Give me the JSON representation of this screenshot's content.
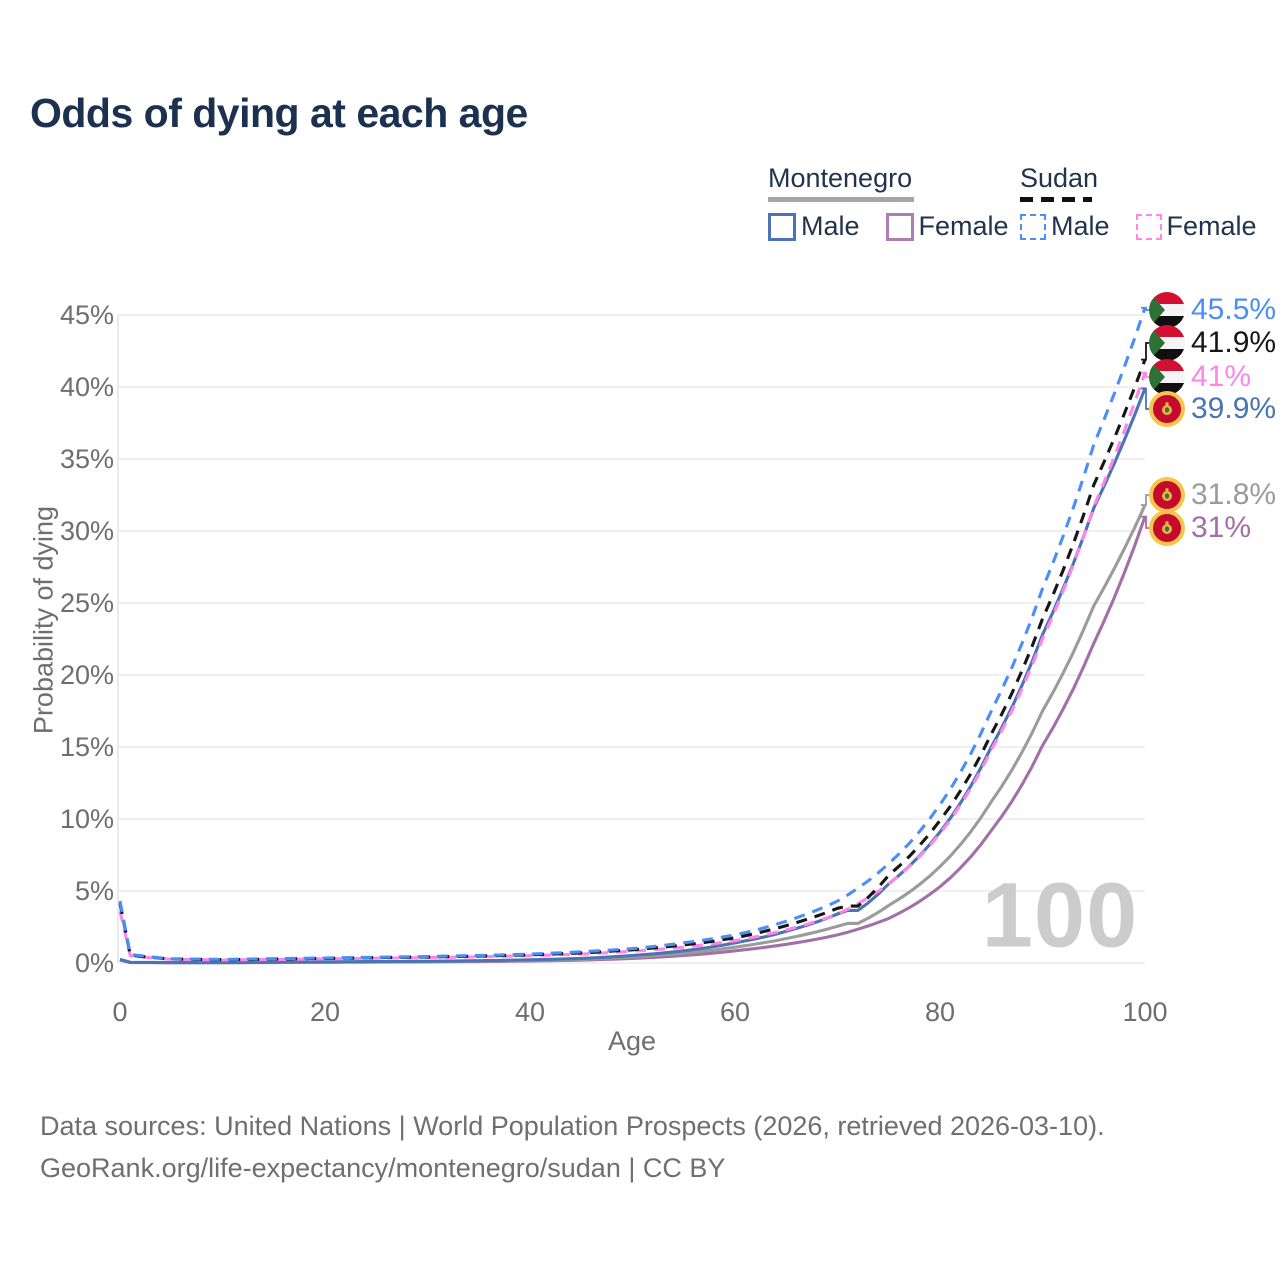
{
  "title": "Odds of dying at each age",
  "watermark": "100",
  "legend": {
    "groups": [
      {
        "key": "montenegro",
        "name": "Montenegro",
        "line_style": "solid",
        "underline_color": "#a6a6a6",
        "items": [
          {
            "key": "male",
            "label": "Male",
            "color": "#4a74b4",
            "dashed": false
          },
          {
            "key": "female",
            "label": "Female",
            "color": "#b07cb5",
            "dashed": false
          }
        ]
      },
      {
        "key": "sudan",
        "name": "Sudan",
        "line_style": "dashed",
        "underline_color": "#111111",
        "items": [
          {
            "key": "male",
            "label": "Male",
            "color": "#4c8df6",
            "dashed": true
          },
          {
            "key": "female",
            "label": "Female",
            "color": "#ff85e6",
            "dashed": true
          }
        ]
      }
    ]
  },
  "axes": {
    "y_label": "Probability of dying",
    "x_label": "Age",
    "y_ticks": [
      {
        "label": "0%",
        "value": 0
      },
      {
        "label": "5%",
        "value": 5
      },
      {
        "label": "10%",
        "value": 10
      },
      {
        "label": "15%",
        "value": 15
      },
      {
        "label": "20%",
        "value": 20
      },
      {
        "label": "25%",
        "value": 25
      },
      {
        "label": "30%",
        "value": 30
      },
      {
        "label": "35%",
        "value": 35
      },
      {
        "label": "40%",
        "value": 40
      },
      {
        "label": "45%",
        "value": 45
      }
    ],
    "x_ticks": [
      {
        "label": "0",
        "value": 0
      },
      {
        "label": "20",
        "value": 20
      },
      {
        "label": "40",
        "value": 40
      },
      {
        "label": "60",
        "value": 60
      },
      {
        "label": "80",
        "value": 80
      },
      {
        "label": "100",
        "value": 100
      }
    ]
  },
  "chart_data": {
    "type": "line",
    "title": "Odds of dying at each age",
    "xlabel": "Age",
    "ylabel": "Probability of dying",
    "xlim": [
      0,
      100
    ],
    "ylim": [
      0,
      45
    ],
    "y_unit": "percent",
    "grid": "horizontal",
    "legend_position": "top-right",
    "series": [
      {
        "name": "Sudan Male",
        "country": "sudan",
        "color": "#4c8df6",
        "dashed": true,
        "end_label": "45.5%",
        "points": [
          [
            0,
            4.3
          ],
          [
            1,
            0.6
          ],
          [
            5,
            0.3
          ],
          [
            10,
            0.25
          ],
          [
            15,
            0.3
          ],
          [
            20,
            0.35
          ],
          [
            25,
            0.4
          ],
          [
            30,
            0.45
          ],
          [
            35,
            0.52
          ],
          [
            40,
            0.62
          ],
          [
            45,
            0.78
          ],
          [
            50,
            1.0
          ],
          [
            55,
            1.4
          ],
          [
            60,
            1.95
          ],
          [
            65,
            2.9
          ],
          [
            70,
            4.3
          ],
          [
            75,
            6.9
          ],
          [
            80,
            11.0
          ],
          [
            85,
            17.5
          ],
          [
            90,
            26.0
          ],
          [
            95,
            36.0
          ],
          [
            100,
            45.5
          ]
        ]
      },
      {
        "name": "Sudan",
        "country": "sudan",
        "color": "#161616",
        "dashed": true,
        "end_label": "41.9%",
        "points": [
          [
            0,
            4.15
          ],
          [
            1,
            0.55
          ],
          [
            5,
            0.28
          ],
          [
            10,
            0.23
          ],
          [
            15,
            0.27
          ],
          [
            20,
            0.32
          ],
          [
            25,
            0.37
          ],
          [
            30,
            0.42
          ],
          [
            35,
            0.48
          ],
          [
            40,
            0.57
          ],
          [
            45,
            0.7
          ],
          [
            50,
            0.92
          ],
          [
            55,
            1.25
          ],
          [
            60,
            1.75
          ],
          [
            65,
            2.6
          ],
          [
            70,
            3.8
          ],
          [
            71,
            3.95
          ],
          [
            72,
            3.95
          ],
          [
            75,
            6.1
          ],
          [
            80,
            9.9
          ],
          [
            85,
            15.9
          ],
          [
            90,
            23.9
          ],
          [
            95,
            33.2
          ],
          [
            100,
            41.9
          ]
        ]
      },
      {
        "name": "Sudan Female",
        "country": "sudan",
        "color": "#ff85e6",
        "dashed": true,
        "end_label": "41%",
        "points": [
          [
            0,
            3.6
          ],
          [
            1,
            0.5
          ],
          [
            5,
            0.26
          ],
          [
            10,
            0.21
          ],
          [
            15,
            0.24
          ],
          [
            20,
            0.29
          ],
          [
            25,
            0.33
          ],
          [
            30,
            0.38
          ],
          [
            35,
            0.43
          ],
          [
            40,
            0.51
          ],
          [
            45,
            0.62
          ],
          [
            50,
            0.82
          ],
          [
            55,
            1.1
          ],
          [
            60,
            1.55
          ],
          [
            65,
            2.3
          ],
          [
            70,
            3.4
          ],
          [
            75,
            5.5
          ],
          [
            80,
            9.0
          ],
          [
            85,
            14.8
          ],
          [
            90,
            22.5
          ],
          [
            95,
            31.7
          ],
          [
            100,
            41.0
          ]
        ]
      },
      {
        "name": "Montenegro Male",
        "country": "montenegro",
        "color": "#4a74b4",
        "dashed": false,
        "end_label": "39.9%",
        "points": [
          [
            0,
            0.25
          ],
          [
            1,
            0.05
          ],
          [
            5,
            0.03
          ],
          [
            10,
            0.03
          ],
          [
            15,
            0.05
          ],
          [
            20,
            0.08
          ],
          [
            25,
            0.1
          ],
          [
            30,
            0.12
          ],
          [
            35,
            0.16
          ],
          [
            40,
            0.22
          ],
          [
            45,
            0.32
          ],
          [
            50,
            0.52
          ],
          [
            55,
            0.85
          ],
          [
            60,
            1.4
          ],
          [
            65,
            2.2
          ],
          [
            70,
            3.4
          ],
          [
            71,
            3.65
          ],
          [
            72,
            3.65
          ],
          [
            75,
            5.5
          ],
          [
            80,
            9.1
          ],
          [
            85,
            15.0
          ],
          [
            90,
            22.8
          ],
          [
            95,
            31.6
          ],
          [
            100,
            39.9
          ]
        ]
      },
      {
        "name": "Montenegro",
        "country": "montenegro",
        "color": "#9b9b9b",
        "dashed": false,
        "end_label": "31.8%",
        "points": [
          [
            0,
            0.22
          ],
          [
            1,
            0.04
          ],
          [
            5,
            0.025
          ],
          [
            10,
            0.025
          ],
          [
            15,
            0.04
          ],
          [
            20,
            0.06
          ],
          [
            25,
            0.08
          ],
          [
            30,
            0.1
          ],
          [
            35,
            0.13
          ],
          [
            40,
            0.18
          ],
          [
            45,
            0.26
          ],
          [
            50,
            0.42
          ],
          [
            55,
            0.68
          ],
          [
            60,
            1.1
          ],
          [
            65,
            1.7
          ],
          [
            70,
            2.55
          ],
          [
            71,
            2.75
          ],
          [
            72,
            2.75
          ],
          [
            75,
            4.0
          ],
          [
            80,
            6.7
          ],
          [
            85,
            11.2
          ],
          [
            90,
            17.5
          ],
          [
            95,
            24.8
          ],
          [
            100,
            31.8
          ]
        ]
      },
      {
        "name": "Montenegro Female",
        "country": "montenegro",
        "color": "#a26fa6",
        "dashed": false,
        "end_label": "31%",
        "points": [
          [
            0,
            0.2
          ],
          [
            1,
            0.03
          ],
          [
            5,
            0.02
          ],
          [
            10,
            0.02
          ],
          [
            15,
            0.03
          ],
          [
            20,
            0.05
          ],
          [
            25,
            0.06
          ],
          [
            30,
            0.08
          ],
          [
            35,
            0.1
          ],
          [
            40,
            0.14
          ],
          [
            45,
            0.2
          ],
          [
            50,
            0.32
          ],
          [
            55,
            0.52
          ],
          [
            60,
            0.85
          ],
          [
            65,
            1.3
          ],
          [
            70,
            1.95
          ],
          [
            75,
            3.1
          ],
          [
            80,
            5.3
          ],
          [
            85,
            9.2
          ],
          [
            90,
            15.1
          ],
          [
            95,
            22.2
          ],
          [
            100,
            31.0
          ]
        ]
      }
    ]
  },
  "footer": {
    "line1": "Data sources: United Nations | World Population Prospects (2026, retrieved 2026-03-10).",
    "line2": "GeoRank.org/life-expectancy/montenegro/sudan | CC BY"
  }
}
